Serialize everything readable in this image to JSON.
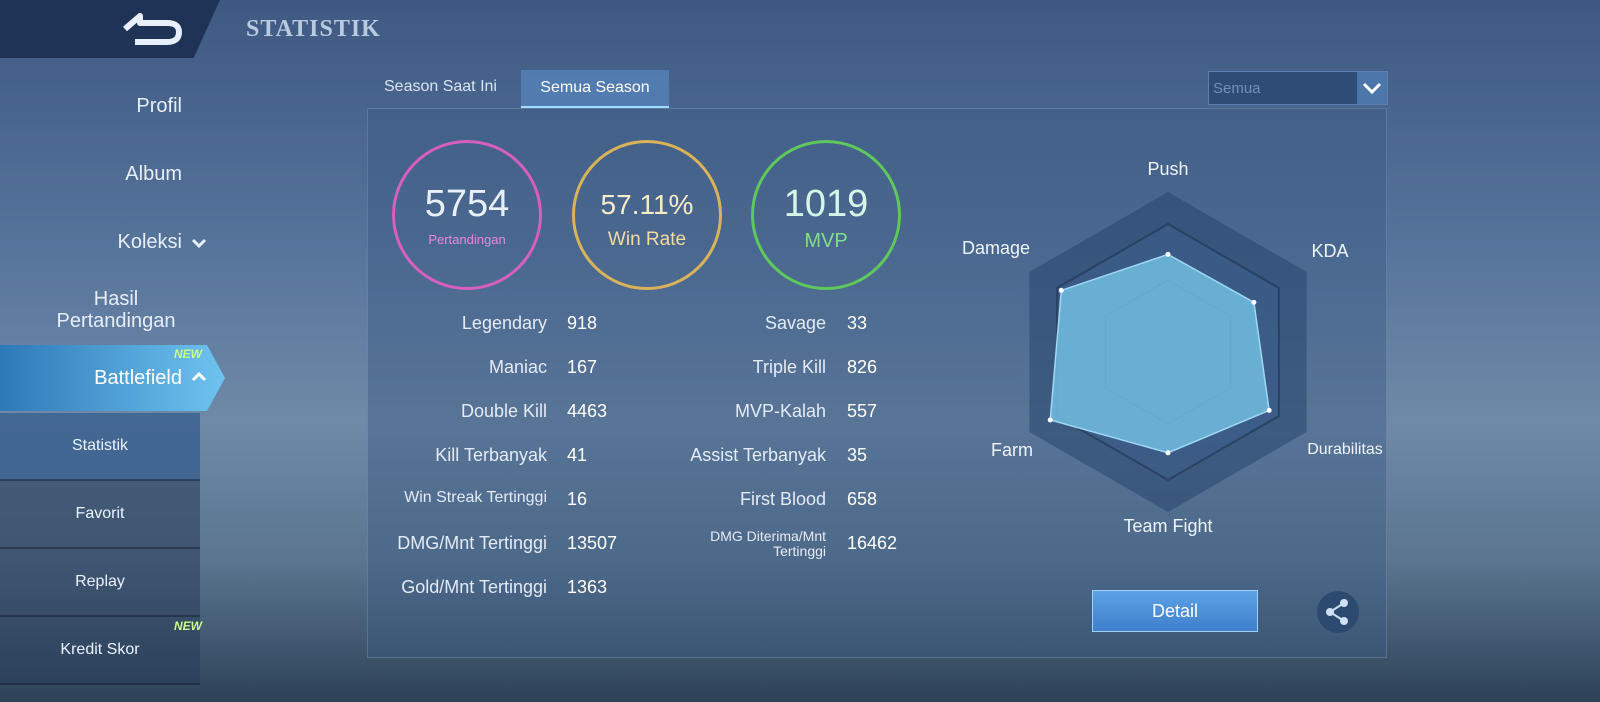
{
  "header": {
    "title": "STATISTIK"
  },
  "sidebar": {
    "items": [
      "Profil",
      "Album",
      "Koleksi",
      "Hasil Pertandingan",
      "Battlefield"
    ],
    "subitems": [
      "Statistik",
      "Favorit",
      "Replay",
      "Kredit Skor"
    ],
    "badge": "NEW"
  },
  "tabs": [
    "Season Saat Ini",
    "Semua Season"
  ],
  "dropdown": "Semua",
  "summary": [
    {
      "value": "5754",
      "label": "Pertandingan"
    },
    {
      "value": "57.11%",
      "label": "Win Rate"
    },
    {
      "value": "1019",
      "label": "MVP"
    }
  ],
  "stats_left": [
    {
      "label": "Legendary",
      "value": 918
    },
    {
      "label": "Maniac",
      "value": 167
    },
    {
      "label": "Double Kill",
      "value": 4463
    },
    {
      "label": "Kill Terbanyak",
      "value": 41
    },
    {
      "label": "Win Streak Tertinggi",
      "value": 16
    },
    {
      "label": "DMG/Mnt Tertinggi",
      "value": 13507
    },
    {
      "label": "Gold/Mnt Tertinggi",
      "value": 1363
    }
  ],
  "stats_right": [
    {
      "label": "Savage",
      "value": 33
    },
    {
      "label": "Triple Kill",
      "value": 826
    },
    {
      "label": "MVP-Kalah",
      "value": 557
    },
    {
      "label": "Assist Terbanyak",
      "value": 35
    },
    {
      "label": "First Blood",
      "value": 658
    },
    {
      "label": "DMG Diterima/Mnt Tertinggi",
      "value": 16462
    }
  ],
  "chart_data": {
    "type": "radar",
    "categories": [
      "Push",
      "KDA",
      "Durabilitas",
      "Team Fight",
      "Farm",
      "Damage"
    ],
    "values": [
      61,
      62,
      73,
      63,
      85,
      77
    ],
    "ylim": [
      0,
      100
    ],
    "color": "#6fb8dc"
  },
  "button": "Detail"
}
